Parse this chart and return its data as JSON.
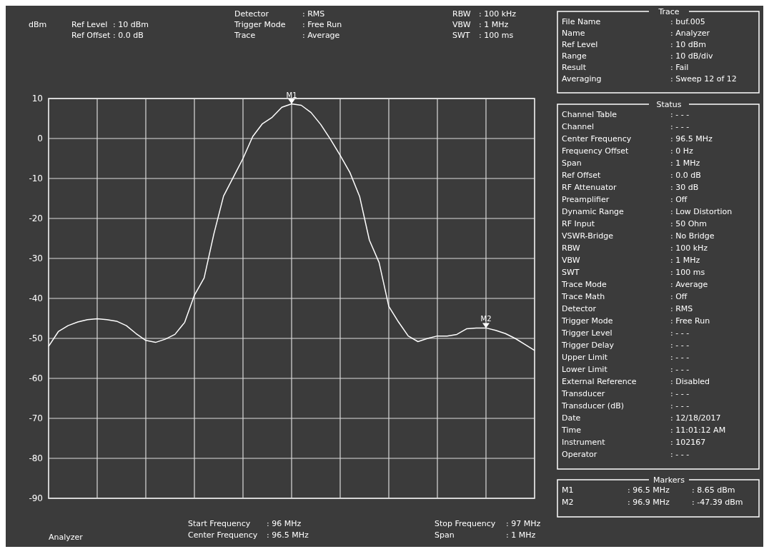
{
  "chart_data": {
    "type": "line",
    "categories": [
      null,
      null,
      null,
      null,
      null,
      null,
      null,
      null,
      null,
      null,
      null,
      null,
      null,
      null,
      null,
      null,
      null,
      null,
      null,
      null,
      null,
      null,
      null,
      null,
      null,
      null,
      null,
      null,
      null,
      null,
      null,
      null,
      null,
      null,
      null,
      null,
      null,
      null,
      null,
      null,
      null,
      null,
      null,
      null,
      null,
      null,
      null,
      null,
      null,
      null,
      null
    ],
    "ylim": [
      -90,
      10
    ],
    "yticks": [
      10,
      0,
      -10,
      -20,
      -30,
      -40,
      -50,
      -60,
      -70,
      -80,
      -90
    ],
    "grid": true,
    "tick_labels": "y",
    "line_style": "solid",
    "marker": "none",
    "series": [
      {
        "color": "#ffffff",
        "values": [
          -52,
          -48.3,
          -46.8,
          -45.9,
          -45.3,
          -45.1,
          -45.3,
          -45.7,
          -46.8,
          -48.8,
          -50.5,
          -51,
          -50.2,
          -49,
          -46,
          -39.2,
          -34.9,
          -23.9,
          -14.4,
          -9.7,
          -5,
          0.5,
          3.7,
          5.3,
          7.8,
          8.65,
          8.3,
          6.5,
          3.5,
          -0.2,
          -4.2,
          -8.5,
          -14.5,
          -25.4,
          -31,
          -42,
          -45.9,
          -49.4,
          -50.8,
          -50,
          -49.4,
          -49.4,
          -49,
          -47.6,
          -47.4,
          -47.39,
          -48,
          -48.8,
          -50,
          -51.5,
          -53
        ]
      }
    ],
    "annotations": [
      "Ref Level : 10 dBm",
      "Ref Offset : 0.0 dB",
      "Detector : RMS",
      "Trigger Mode : Free Run",
      "Trace : Average",
      "RBW : 100 kHz",
      "VBW : 1 MHz",
      "SWT : 100 ms",
      "Analyzer",
      "Start Frequency : 96 MHz",
      "Center Frequency : 96.5 MHz",
      "Stop Frequency : 97 MHz",
      "Span : 1 MHz",
      "Trace",
      "File Name : buf.005",
      "Name : Analyzer",
      "Ref Level : 10 dBm",
      "Range : 10 dB/div",
      "Result : Fail",
      "Averaging : Sweep 12 of 12",
      "Status",
      "Channel Table : - - -",
      "Channel : - - -",
      "Center Frequency : 96.5 MHz",
      "Frequency Offset : 0 Hz",
      "Span : 1 MHz",
      "Ref Offset : 0.0 dB",
      "RF Attenuator : 30 dB",
      "Preamplifier : Off",
      "Dynamic Range : Low Distortion",
      "RF Input : 50 Ohm",
      "VSWR-Bridge : No Bridge",
      "RBW : 100 kHz",
      "VBW : 1 MHz",
      "SWT : 100 ms",
      "Trace Mode : Average",
      "Trace Math : Off",
      "Detector : RMS",
      "Trigger Mode : Free Run",
      "Trigger Level : - - -",
      "Trigger Delay : - - -",
      "Upper Limit : - - -",
      "Lower Limit : - - -",
      "External Reference : Disabled",
      "Transducer : - - -",
      "Transducer (dB) : - - -",
      "Date : 12/18/2017",
      "Time : 11:01:12 AM",
      "Instrument : 102167",
      "Operator : - - -",
      "Markers",
      "M1 : 96.5 MHz : 8.65 dBm",
      "M2 : 96.9 MHz : -47.39 dBm",
      "dBm",
      {
        "text": "M1",
        "y": 8.65
      },
      {
        "text": "M2",
        "y": -47.39
      }
    ]
  }
}
